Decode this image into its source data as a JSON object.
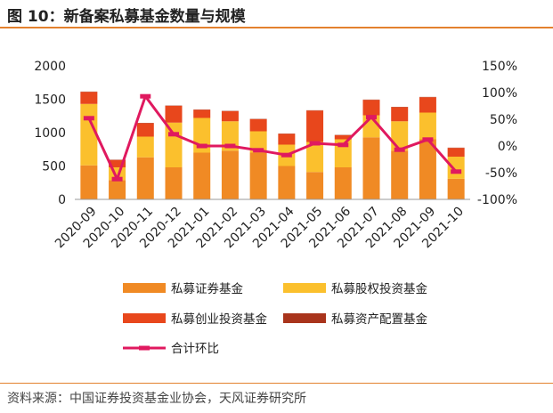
{
  "figure": {
    "title": "图 10：新备案私募基金数量与规模",
    "source": "资料来源：中国证券投资基金业协会，天风证券研究所"
  },
  "chart_data": {
    "type": "bar",
    "stacked": true,
    "categories": [
      "2020-09",
      "2020-10",
      "2020-11",
      "2020-12",
      "2021-01",
      "2021-02",
      "2021-03",
      "2021-04",
      "2021-05",
      "2021-06",
      "2021-07",
      "2021-08",
      "2021-09",
      "2021-10"
    ],
    "series": [
      {
        "name": "私募证券基金",
        "type": "bar",
        "axis": "left",
        "color": "#F08A24",
        "values": [
          510,
          290,
          630,
          480,
          700,
          730,
          700,
          500,
          410,
          480,
          930,
          730,
          900,
          310
        ]
      },
      {
        "name": "私募股权投资基金",
        "type": "bar",
        "axis": "left",
        "color": "#FBC02D",
        "values": [
          920,
          190,
          310,
          670,
          520,
          440,
          320,
          320,
          450,
          420,
          330,
          440,
          400,
          330
        ]
      },
      {
        "name": "私募创业投资基金",
        "type": "bar",
        "axis": "left",
        "color": "#E8471C",
        "values": [
          180,
          110,
          200,
          250,
          120,
          150,
          180,
          160,
          470,
          60,
          230,
          210,
          230,
          130
        ]
      },
      {
        "name": "私募资产配置基金",
        "type": "bar",
        "axis": "left",
        "color": "#A9341C",
        "values": [
          5,
          5,
          5,
          5,
          5,
          5,
          5,
          5,
          5,
          5,
          5,
          5,
          5,
          5
        ]
      },
      {
        "name": "合计环比",
        "type": "line",
        "axis": "right",
        "color": "#E0195F",
        "values": [
          52,
          -62,
          93,
          22,
          0,
          0,
          -8,
          -17,
          5,
          2,
          54,
          -7,
          12,
          -48
        ]
      }
    ],
    "left_axis": {
      "ylim": [
        0,
        2000
      ],
      "ticks": [
        0,
        500,
        1000,
        1500,
        2000
      ],
      "tick_labels": [
        "0",
        "500",
        "1000",
        "1500",
        "2000"
      ]
    },
    "right_axis": {
      "ylim": [
        -100,
        150
      ],
      "ticks": [
        -100,
        -50,
        0,
        50,
        100,
        150
      ],
      "tick_labels": [
        "-100%",
        "-50%",
        "0%",
        "50%",
        "100%",
        "150%"
      ]
    },
    "grid": false,
    "legend_position": "bottom"
  }
}
